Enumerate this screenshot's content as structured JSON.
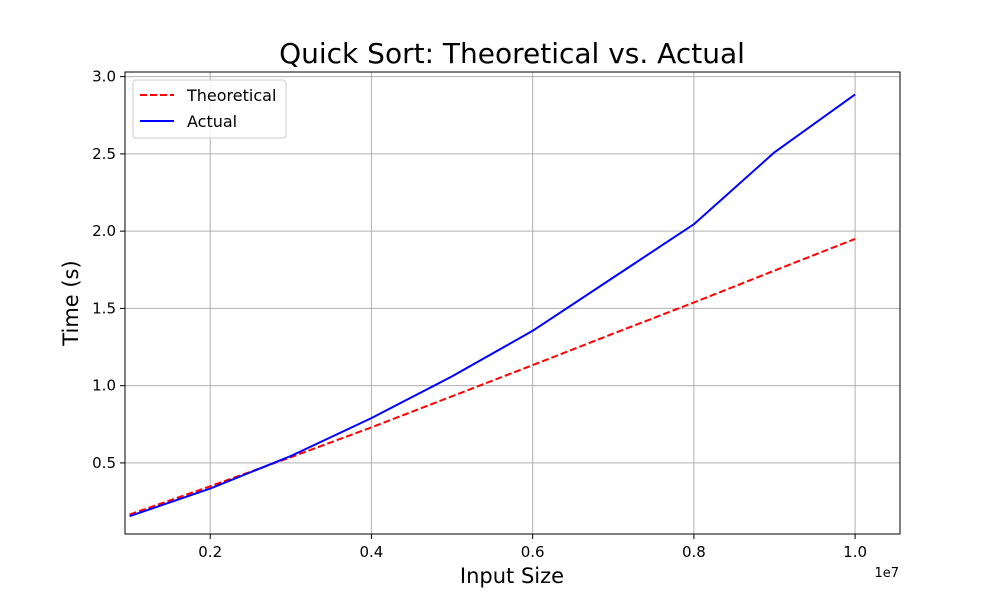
{
  "chart_data": {
    "type": "line",
    "title": "Quick Sort: Theoretical vs. Actual",
    "xlabel": "Input Size",
    "ylabel": "Time (s)",
    "x_offset_label": "1e7",
    "xlim": [
      0.943,
      10.557
    ],
    "ylim": [
      0.04,
      3.03
    ],
    "x_ticks": [
      2,
      4,
      6,
      8,
      10
    ],
    "x_tick_labels": [
      "0.2",
      "0.4",
      "0.6",
      "0.8",
      "1.0"
    ],
    "y_ticks": [
      0.5,
      1.0,
      1.5,
      2.0,
      2.5,
      3.0
    ],
    "y_tick_labels": [
      "0.5",
      "1.0",
      "1.5",
      "2.0",
      "2.5",
      "3.0"
    ],
    "grid": true,
    "legend_position": "top-left",
    "series": [
      {
        "name": "Theoretical",
        "color": "#ff0000",
        "dash": "dashed",
        "x": [
          1,
          2,
          3,
          4,
          5,
          6,
          7,
          8,
          9,
          10
        ],
        "y": [
          0.166,
          0.349,
          0.537,
          0.73,
          0.931,
          1.133,
          1.337,
          1.538,
          1.745,
          1.95
        ]
      },
      {
        "name": "Actual",
        "color": "#0000ff",
        "dash": "solid",
        "x": [
          1,
          2,
          3,
          4,
          5,
          6,
          7,
          8,
          9,
          10
        ],
        "y": [
          0.155,
          0.334,
          0.545,
          0.79,
          1.06,
          1.355,
          1.7,
          2.045,
          2.51,
          2.885
        ]
      }
    ]
  }
}
